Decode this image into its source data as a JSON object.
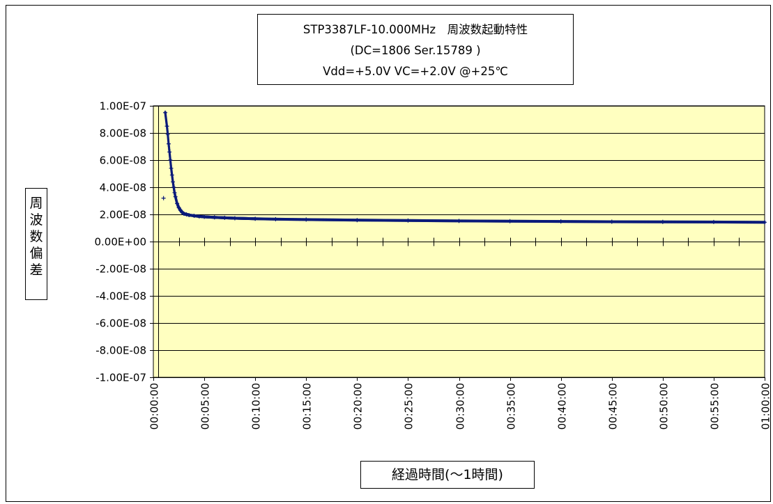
{
  "chart_data": {
    "type": "scatter",
    "title_lines": [
      "STP3387LF-10.000MHz　周波数起動特性",
      "(DC=1806 Ser.15789 )",
      "Vdd=+5.0V  VC=+2.0V @+25℃"
    ],
    "xlabel": "経過時間(～1時間)",
    "ylabel": "周波数偏差",
    "ylim": [
      -1e-07,
      1e-07
    ],
    "y_ticks": [
      "1.00E-07",
      "8.00E-08",
      "6.00E-08",
      "4.00E-08",
      "2.00E-08",
      "0.00E+00",
      "-2.00E-08",
      "-4.00E-08",
      "-6.00E-08",
      "-8.00E-08",
      "-1.00E-07"
    ],
    "y_tick_values": [
      1e-07,
      8e-08,
      6e-08,
      4e-08,
      2e-08,
      0,
      -2e-08,
      -4e-08,
      -6e-08,
      -8e-08,
      -1e-07
    ],
    "x_ticks": [
      "00:00:00",
      "00:05:00",
      "00:10:00",
      "00:15:00",
      "00:20:00",
      "00:25:00",
      "00:30:00",
      "00:35:00",
      "00:40:00",
      "00:45:00",
      "00:50:00",
      "00:55:00",
      "01:00:00"
    ],
    "xlim_seconds": [
      0,
      3600
    ],
    "grid": true,
    "colors": {
      "plot_background": "#ffffc0",
      "series": "#0a1a7a",
      "axis": "#000000"
    },
    "series": [
      {
        "x_seconds": [
          60,
          70,
          80,
          85,
          90,
          95,
          100,
          105,
          110,
          115,
          120,
          125,
          130,
          140,
          150,
          160,
          170,
          180,
          195,
          210,
          240,
          270,
          300,
          360,
          420,
          480,
          600,
          720,
          900,
          1200,
          1500,
          1800,
          2100,
          2400,
          2700,
          3000,
          3300,
          3600
        ],
        "y": [
          3.2e-08,
          9.5e-08,
          8.5e-08,
          7.9e-08,
          7.2e-08,
          6.6e-08,
          6e-08,
          5.4e-08,
          4.9e-08,
          4.4e-08,
          4e-08,
          3.6e-08,
          3.3e-08,
          2.8e-08,
          2.5e-08,
          2.3e-08,
          2.15e-08,
          2.05e-08,
          2e-08,
          1.95e-08,
          1.9e-08,
          1.85e-08,
          1.82e-08,
          1.78e-08,
          1.75e-08,
          1.72e-08,
          1.68e-08,
          1.65e-08,
          1.62e-08,
          1.58e-08,
          1.55e-08,
          1.52e-08,
          1.5e-08,
          1.48e-08,
          1.46e-08,
          1.45e-08,
          1.44e-08,
          1.42e-08
        ]
      }
    ]
  }
}
